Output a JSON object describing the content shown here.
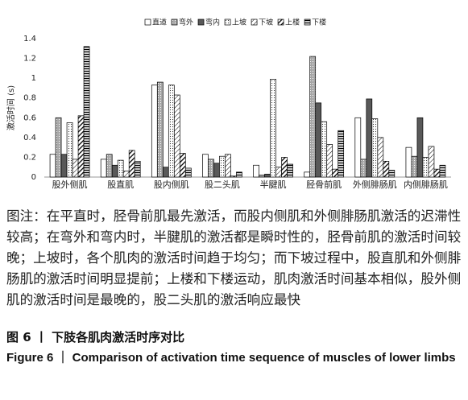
{
  "chart_data": {
    "type": "bar",
    "y_label": "激活时间 (s)",
    "categories": [
      "股外侧肌",
      "股直肌",
      "股内侧肌",
      "股二头肌",
      "半腱肌",
      "胫骨前肌",
      "外侧腓肠肌",
      "内侧腓肠肌"
    ],
    "series": [
      {
        "name": "直道",
        "color": "#ffffff",
        "pattern": "solid",
        "values": [
          0.23,
          0.18,
          0.93,
          0.23,
          0.12,
          0.05,
          0.6,
          0.3
        ]
      },
      {
        "name": "弯外",
        "color": "#a6a6a6",
        "pattern": "dots",
        "values": [
          0.6,
          0.23,
          0.96,
          0.18,
          0.02,
          1.22,
          0.18,
          0.21
        ]
      },
      {
        "name": "弯内",
        "color": "#595959",
        "pattern": "solid",
        "values": [
          0.23,
          0.12,
          0.1,
          0.14,
          0.03,
          0.75,
          0.79,
          0.6
        ]
      },
      {
        "name": "上坡",
        "color": "#ffffff",
        "pattern": "fine-dots",
        "values": [
          0.55,
          0.17,
          0.93,
          0.21,
          0.99,
          0.56,
          0.59,
          0.2
        ]
      },
      {
        "name": "下坡",
        "color": "#ffffff",
        "pattern": "thin-diagonal",
        "values": [
          0.18,
          0.06,
          0.83,
          0.23,
          0.1,
          0.33,
          0.4,
          0.31
        ]
      },
      {
        "name": "上楼",
        "color": "#ffffff",
        "pattern": "thick-diagonal",
        "values": [
          0.62,
          0.27,
          0.24,
          0.01,
          0.2,
          0.08,
          0.16,
          0.08
        ]
      },
      {
        "name": "下楼",
        "color": "#ffffff",
        "pattern": "horizontal",
        "values": [
          1.32,
          0.16,
          0.09,
          0.05,
          0.13,
          0.47,
          0.07,
          0.12
        ]
      }
    ],
    "ylim": [
      0,
      1.4
    ],
    "yticks": [
      0,
      0.2,
      0.4,
      0.6,
      0.8,
      1,
      1.2,
      1.4
    ],
    "grid": false,
    "legend": "top"
  },
  "note": "图注：在平直时，胫骨前肌最先激活，而股内侧肌和外侧腓肠肌激活的迟滞性较高；在弯外和弯内时，半腱肌的激活都是瞬时性的，胫骨前肌的激活时间较晚；上坡时，各个肌肉的激活时间趋于均匀；而下坡过程中，股直肌和外侧腓肠肌的激活时间明显提前；上楼和下楼运动，肌肉激活时间基本相似，股外侧肌的激活时间是最晚的，股二头肌的激活响应最快",
  "figure_title_cn": "图 6 丨 下肢各肌肉激活时序对比",
  "figure_title_en": "Figure 6 ｜ Comparison of activation time sequence of muscles of lower limbs"
}
